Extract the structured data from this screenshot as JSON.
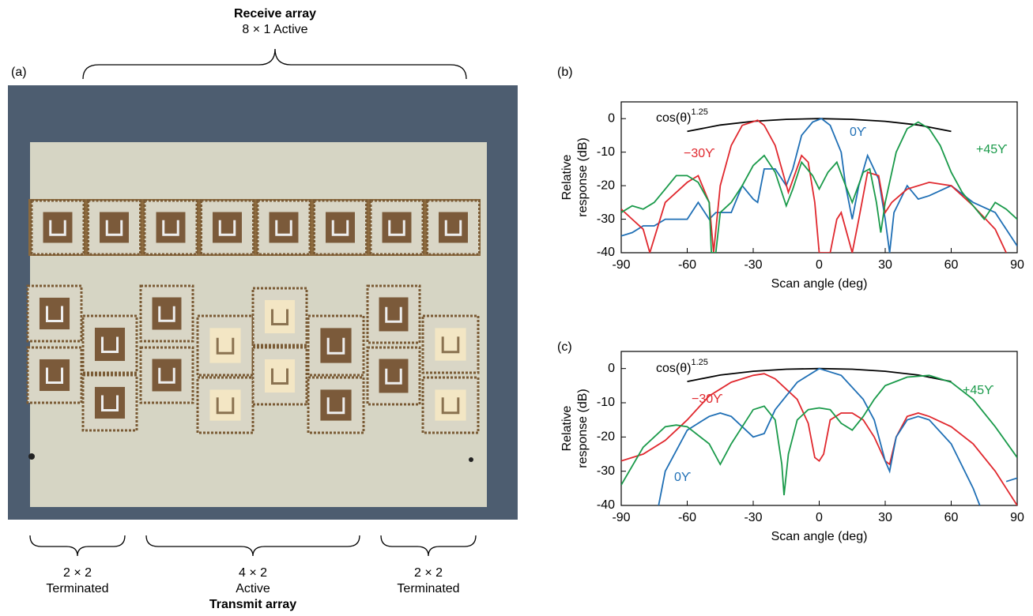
{
  "panel_a": {
    "label": "(a)",
    "receive_title": "Receive array",
    "receive_subtitle": "8 × 1 Active",
    "groups": [
      {
        "lines": [
          "2 × 2",
          "Terminated"
        ]
      },
      {
        "lines": [
          "4 × 2",
          "Active"
        ]
      },
      {
        "lines": [
          "2 × 2",
          "Terminated"
        ]
      }
    ],
    "transmit_title": "Transmit array"
  },
  "chart_data": [
    {
      "type": "line",
      "panel_label": "(b)",
      "xlabel": "Scan angle (deg)",
      "ylabel": [
        "Relative",
        "response (dB)"
      ],
      "xlim": [
        -90,
        90
      ],
      "ylim": [
        -40,
        5
      ],
      "xticks": [
        -90,
        -60,
        -30,
        0,
        30,
        60,
        90
      ],
      "yticks": [
        -40,
        -30,
        -20,
        -10,
        0
      ],
      "series": [
        {
          "name": "cos(θ)",
          "name_superscript": "1.25",
          "color": "#000000",
          "x": [
            -60,
            -45,
            -30,
            -15,
            0,
            15,
            30,
            45,
            60
          ],
          "values": [
            -3.8,
            -1.9,
            -0.8,
            -0.2,
            0,
            -0.2,
            -0.8,
            -1.9,
            -3.8
          ]
        },
        {
          "name": "0ϒ",
          "color": "#1f6fb5",
          "x": [
            -90,
            -85,
            -80,
            -75,
            -70,
            -60,
            -55,
            -50,
            -47,
            -40,
            -35,
            -30,
            -28,
            -25,
            -20,
            -15,
            -12,
            -8,
            -3,
            1,
            5,
            10,
            12,
            15,
            18,
            22,
            27,
            30,
            32,
            34,
            40,
            45,
            50,
            60,
            70,
            80,
            85,
            90
          ],
          "values": [
            -35,
            -34,
            -32,
            -32,
            -30,
            -30,
            -25,
            -30,
            -28,
            -28,
            -20,
            -24,
            -25,
            -15,
            -15,
            -20,
            -15,
            -5,
            -1,
            0,
            -2,
            -10,
            -20,
            -30,
            -20,
            -11,
            -18,
            -30,
            -40,
            -28,
            -20,
            -24,
            -23,
            -20,
            -25,
            -28,
            -33,
            -38
          ]
        },
        {
          "name": "−30ϒ",
          "color": "#e0282e",
          "x": [
            -90,
            -85,
            -80,
            -77,
            -70,
            -60,
            -55,
            -50,
            -48,
            -45,
            -40,
            -35,
            -28,
            -25,
            -20,
            -14,
            -8,
            -5,
            -2,
            0,
            5,
            8,
            10,
            15,
            18,
            22,
            27,
            30,
            33,
            40,
            50,
            60,
            70,
            80,
            85
          ],
          "values": [
            -27,
            -30,
            -33,
            -40,
            -25,
            -19,
            -17,
            -25,
            -40,
            -20,
            -8,
            -2,
            -0.5,
            -2,
            -8,
            -22,
            -11,
            -13,
            -25,
            -40,
            -40,
            -30,
            -28,
            -40,
            -30,
            -16,
            -17,
            -28,
            -25,
            -21,
            -19,
            -20,
            -26,
            -33,
            -40
          ]
        },
        {
          "name": "+45ϒ",
          "color": "#1a9a4a",
          "x": [
            -90,
            -85,
            -80,
            -75,
            -70,
            -65,
            -60,
            -55,
            -50,
            -49,
            -47,
            -45,
            -40,
            -35,
            -30,
            -25,
            -20,
            -15,
            -12,
            -8,
            -3,
            0,
            4,
            8,
            12,
            15,
            20,
            23,
            26,
            28,
            30,
            35,
            40,
            45,
            50,
            55,
            60,
            65,
            70,
            75,
            80,
            85,
            90
          ],
          "values": [
            -28,
            -26,
            -27,
            -25,
            -21,
            -17,
            -17,
            -19,
            -25,
            -40,
            -40,
            -28,
            -25,
            -20,
            -14,
            -11,
            -16,
            -26,
            -21,
            -13,
            -17,
            -21,
            -16,
            -13,
            -20,
            -25,
            -16,
            -15,
            -25,
            -34,
            -25,
            -10,
            -3,
            -1,
            -3,
            -8,
            -16,
            -22,
            -26,
            -30,
            -25,
            -27,
            -30
          ]
        }
      ]
    },
    {
      "type": "line",
      "panel_label": "(c)",
      "xlabel": "Scan angle (deg)",
      "ylabel": [
        "Relative",
        "response (dB)"
      ],
      "xlim": [
        -90,
        90
      ],
      "ylim": [
        -40,
        5
      ],
      "xticks": [
        -90,
        -60,
        -30,
        0,
        30,
        60,
        90
      ],
      "yticks": [
        -40,
        -30,
        -20,
        -10,
        0
      ],
      "series": [
        {
          "name": "cos(θ)",
          "name_superscript": "1.25",
          "color": "#000000",
          "x": [
            -60,
            -45,
            -30,
            -15,
            0,
            15,
            30,
            45,
            60
          ],
          "values": [
            -3.8,
            -1.9,
            -0.8,
            -0.2,
            0,
            -0.2,
            -0.8,
            -1.9,
            -3.8
          ]
        },
        {
          "name": "−30ϒ",
          "color": "#e0282e",
          "x": [
            -90,
            -80,
            -70,
            -60,
            -50,
            -40,
            -30,
            -25,
            -20,
            -10,
            -5,
            -2,
            0,
            2,
            5,
            10,
            15,
            20,
            25,
            30,
            32,
            35,
            40,
            45,
            50,
            60,
            70,
            80,
            90
          ],
          "values": [
            -27,
            -25,
            -21,
            -15,
            -8,
            -4,
            -2,
            -1.5,
            -3,
            -9,
            -16,
            -26,
            -27,
            -25,
            -15,
            -13,
            -13,
            -15,
            -20,
            -27,
            -28,
            -20,
            -14,
            -13,
            -14,
            -17,
            -22,
            -30,
            -40
          ]
        },
        {
          "name": "0ϒ",
          "color": "#1f6fb5",
          "x": [
            -73,
            -70,
            -60,
            -50,
            -45,
            -40,
            -30,
            -25,
            -20,
            -10,
            0,
            10,
            20,
            25,
            30,
            32,
            35,
            40,
            45,
            50,
            60,
            70,
            73,
            80,
            85,
            90
          ],
          "values": [
            -40,
            -30,
            -18,
            -14,
            -13,
            -14,
            -20,
            -19,
            -12,
            -4,
            0,
            -2,
            -9,
            -15,
            -27,
            -30,
            -20,
            -15,
            -14,
            -15,
            -22,
            -35,
            -40,
            null,
            -33,
            -32
          ]
        },
        {
          "name": "+45ϒ",
          "color": "#1a9a4a",
          "x": [
            -90,
            -80,
            -70,
            -65,
            -60,
            -50,
            -45,
            -40,
            -35,
            -30,
            -25,
            -20,
            -17,
            -16,
            -14,
            -10,
            -5,
            0,
            5,
            10,
            15,
            20,
            25,
            30,
            40,
            50,
            60,
            70,
            80,
            90
          ],
          "values": [
            -34,
            -23,
            -17,
            -16.5,
            -17,
            -22,
            -28,
            -22,
            -17,
            -12,
            -11,
            -15,
            -28,
            -37,
            -25,
            -15,
            -12,
            -11.5,
            -12,
            -16,
            -18,
            -14,
            -9,
            -5,
            -2.5,
            -2,
            -4,
            -9,
            -17,
            -26
          ]
        }
      ]
    }
  ]
}
